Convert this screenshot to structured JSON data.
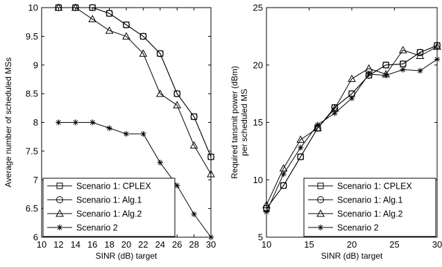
{
  "legend_labels": [
    "Scenario 1: CPLEX",
    "Scenario 1: Alg.1",
    "Scenario 1: Alg.2",
    "Scenario 2"
  ],
  "chart_data": [
    {
      "type": "line",
      "xlabel": "SINR (dB) target",
      "ylabel": "Average number of scheduled MSs",
      "xlim": [
        10,
        30
      ],
      "ylim": [
        6,
        10
      ],
      "xticks": [
        10,
        12,
        14,
        16,
        18,
        20,
        22,
        24,
        26,
        28,
        30
      ],
      "yticks": [
        6,
        6.5,
        7,
        7.5,
        8,
        8.5,
        9,
        9.5,
        10
      ],
      "grid": false,
      "legend_position": "bottom-left",
      "x": [
        12,
        14,
        16,
        18,
        20,
        22,
        24,
        26,
        28,
        30
      ],
      "series": [
        {
          "name": "Scenario 1: CPLEX",
          "marker": "square",
          "values": [
            10,
            10,
            10,
            9.9,
            9.7,
            9.5,
            9.2,
            8.5,
            8.1,
            7.4
          ]
        },
        {
          "name": "Scenario 1: Alg.1",
          "marker": "circle",
          "values": [
            10,
            10,
            10,
            9.9,
            9.7,
            9.5,
            9.2,
            8.5,
            8.1,
            7.4
          ]
        },
        {
          "name": "Scenario 1: Alg.2",
          "marker": "triangle",
          "values": [
            10,
            10,
            9.8,
            9.6,
            9.5,
            9.2,
            8.5,
            8.3,
            7.6,
            7.1
          ]
        },
        {
          "name": "Scenario 2",
          "marker": "star",
          "values": [
            8,
            8,
            8,
            7.9,
            7.8,
            7.8,
            7.3,
            6.9,
            6.4,
            6.0
          ]
        }
      ]
    },
    {
      "type": "line",
      "xlabel": "SINR (dB) target",
      "ylabel": [
        "Required tansmit power (dBm)",
        "per scheduled MS"
      ],
      "xlim": [
        10,
        30
      ],
      "ylim": [
        5,
        25
      ],
      "xticks": [
        10,
        15,
        20,
        25,
        30
      ],
      "yticks": [
        5,
        10,
        15,
        20,
        25
      ],
      "grid": false,
      "legend_position": "bottom-right",
      "x": [
        10,
        12,
        14,
        16,
        18,
        20,
        22,
        24,
        26,
        28,
        30
      ],
      "series": [
        {
          "name": "Scenario 1: CPLEX",
          "marker": "square",
          "values": [
            7.5,
            9.5,
            12.0,
            14.5,
            16.3,
            17.5,
            19.1,
            20.0,
            20.1,
            21.1,
            21.7
          ]
        },
        {
          "name": "Scenario 1: Alg.1",
          "marker": "circle",
          "values": [
            7.5,
            9.5,
            12.0,
            14.5,
            16.3,
            17.5,
            19.1,
            20.0,
            20.1,
            21.1,
            21.7
          ]
        },
        {
          "name": "Scenario 1: Alg.2",
          "marker": "triangle",
          "values": [
            7.8,
            11.0,
            13.5,
            14.5,
            16.2,
            18.8,
            19.7,
            19.2,
            21.3,
            20.8,
            21.6
          ]
        },
        {
          "name": "Scenario 2",
          "marker": "star",
          "values": [
            7.2,
            10.5,
            12.8,
            14.8,
            15.8,
            17.1,
            19.2,
            19.1,
            19.6,
            19.5,
            20.5
          ]
        }
      ]
    }
  ]
}
